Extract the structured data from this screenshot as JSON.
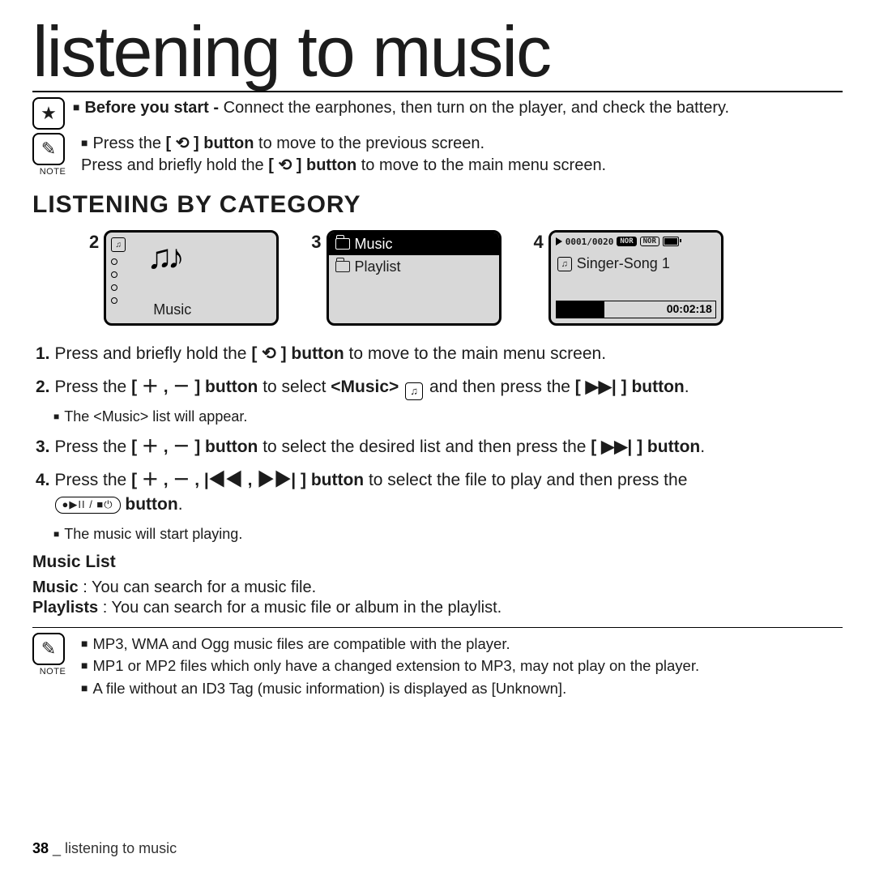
{
  "title": "listening to music",
  "before_start_label": "Before you start - ",
  "before_start_text": "Connect the earphones, then turn on the player, and check the battery.",
  "note_label": "NOTE",
  "note1_a_pre": "Press the ",
  "note1_a_bold": "[ ⟲ ] button",
  "note1_a_post": " to move to the previous screen.",
  "note1_b_pre": "Press and briefly hold the ",
  "note1_b_bold": "[ ⟲ ] button",
  "note1_b_post": " to move to the main menu screen.",
  "section": "LISTENING BY CATEGORY",
  "scr_nums": {
    "a": "2",
    "b": "3",
    "c": "4"
  },
  "s2_label": "Music",
  "s3_music": "Music",
  "s3_playlist": "Playlist",
  "s4_counter": "0001/0020",
  "s4_badge1": "NOR",
  "s4_badge2": "NOR",
  "s4_song": "Singer-Song 1",
  "s4_time": "00:02:18",
  "steps": {
    "s1_pre": "Press and briefly hold the ",
    "s1_bold": "[ ⟲ ] button",
    "s1_post": " to move to the main menu screen.",
    "s2_pre": "Press the ",
    "s2_bold1": "[ ＋ , － ] button",
    "s2_mid": " to select ",
    "s2_music": "<Music>",
    "s2_post": " and then press the ",
    "s2_bold2": "[ ▶▶| ] button",
    "s2_sub": "The <Music> list will appear.",
    "s3_pre": "Press the ",
    "s3_bold1": "[ ＋ , － ] button",
    "s3_mid": " to select the desired list and then press the ",
    "s3_bold2": "[ ▶▶| ] button",
    "s4_pre": " Press the ",
    "s4_bold1": "[ ＋ , － , |◀◀ , ▶▶| ] button",
    "s4_mid": " to select the file to play and then press the ",
    "s4_btn": "●▶II / ■⏻",
    "s4_bold2": " button",
    "s4_sub": "The music will start playing."
  },
  "ml_heading": "Music List",
  "ml_music_b": "Music",
  "ml_music_t": " : You can search for a music file.",
  "ml_pl_b": "Playlists",
  "ml_pl_t": " : You can search for a music file or album in the playlist.",
  "notes2": {
    "a": "MP3, WMA and Ogg music files are compatible with the player.",
    "b": "MP1 or MP2 files which only have a changed extension to MP3, may not play on the player.",
    "c": "A file without an ID3 Tag (music information) is displayed as [Unknown]."
  },
  "footer_page": "38",
  "footer_sep": " _ ",
  "footer_text": "listening to music",
  "icons": {
    "star": "★",
    "pencil": "✎",
    "back": "⟲",
    "music": "♫"
  }
}
